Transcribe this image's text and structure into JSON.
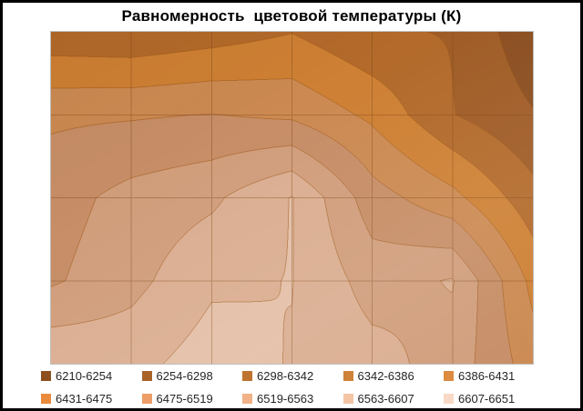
{
  "title": "Равномерность  цветовой температуры (К)",
  "chart_data": {
    "type": "heatmap",
    "subtype": "filled-contour-surface",
    "title": "Равномерность  цветовой температуры (К)",
    "unit": "K",
    "value_range": [
      6210,
      6651
    ],
    "band_size": 44.1,
    "grid": {
      "rows": 5,
      "cols": 7,
      "values": [
        [
          6310,
          6305,
          6321,
          6341,
          6303,
          6296,
          6222
        ],
        [
          6423,
          6426,
          6432,
          6422,
          6377,
          6300,
          6257
        ],
        [
          6455,
          6490,
          6510,
          6565,
          6450,
          6400,
          6314
        ],
        [
          6468,
          6505,
          6555,
          6564,
          6500,
          6522,
          6374
        ],
        [
          6558,
          6548,
          6585,
          6560,
          6535,
          6500,
          6408
        ]
      ]
    },
    "bands": [
      {
        "label": "6210-6254",
        "legend_color": "#8D4F1E",
        "surface_color": "#8B4E20"
      },
      {
        "label": "6254-6298",
        "legend_color": "#A96327",
        "surface_color": "#A05C26"
      },
      {
        "label": "6298-6342",
        "legend_color": "#BE7430",
        "surface_color": "#B36A2B"
      },
      {
        "label": "6342-6386",
        "legend_color": "#CE8338",
        "surface_color": "#CE8034"
      },
      {
        "label": "6386-6431",
        "legend_color": "#DC8B41",
        "surface_color": "#CC8A52"
      },
      {
        "label": "6431-6475",
        "legend_color": "#E98A3C",
        "surface_color": "#C78E67"
      },
      {
        "label": "6475-6519",
        "legend_color": "#EC9E66",
        "surface_color": "#D19E7C"
      },
      {
        "label": "6519-6563",
        "legend_color": "#F0B286",
        "surface_color": "#DBAE91"
      },
      {
        "label": "6563-6607",
        "legend_color": "#F4C5A5",
        "surface_color": "#E4BFA7"
      },
      {
        "label": "6607-6651",
        "legend_color": "#F8D9C6",
        "surface_color": "#EFD3C3"
      }
    ],
    "legend_position": "bottom",
    "legend_rows": 2,
    "gridlines": true,
    "axes": {
      "x_tick_labels_visible": false,
      "y_tick_labels_visible": false
    }
  },
  "colors": {
    "background": "#FFFFFF",
    "outer_border": "#000000",
    "plot_border": "#BFBFBF",
    "gridline": "rgba(120,66,18,0.38)",
    "contour_line_blend": "#9C5614",
    "legend_text": "#262626",
    "title_text": "#000000"
  }
}
